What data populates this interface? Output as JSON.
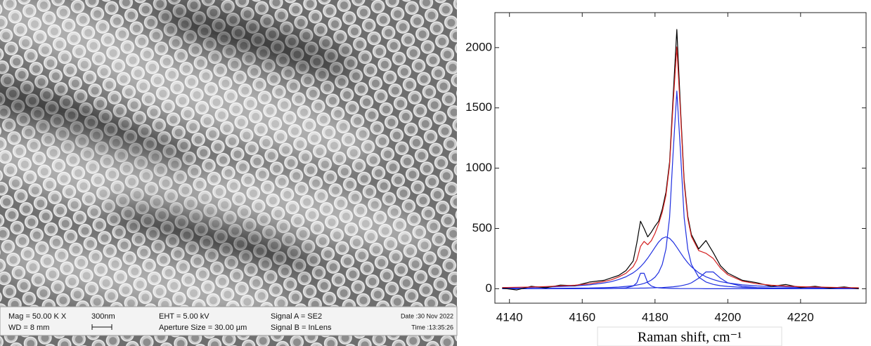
{
  "sem_panel": {
    "info": {
      "mag": "Mag = 50.00 K X",
      "wd": "WD =  8 mm",
      "scale": "300nm",
      "eht": "EHT = 5.00 kV",
      "aperture": "Aperture Size = 30.00 µm",
      "signal_a": "Signal A = SE2",
      "signal_b": "Signal B = InLens",
      "date": "Date :30 Nov 2022",
      "time": "Time :13:35:26"
    }
  },
  "chart_data": {
    "type": "line",
    "x_label": "Raman shift, cm⁻¹",
    "x": [
      4138,
      4142,
      4146,
      4150,
      4154,
      4158,
      4162,
      4166,
      4168,
      4170,
      4172,
      4174,
      4175,
      4176,
      4177,
      4178,
      4179,
      4180,
      4181,
      4182,
      4183,
      4184,
      4185,
      4186,
      4187,
      4188,
      4189,
      4190,
      4192,
      4194,
      4196,
      4198,
      4200,
      4204,
      4208,
      4212,
      4216,
      4220,
      4224,
      4228,
      4232,
      4236
    ],
    "series": [
      {
        "color": "#1f2fe0",
        "values": [
          0,
          0,
          0,
          0,
          0,
          0,
          1,
          1,
          2,
          4,
          7,
          22,
          49,
          128,
          128,
          49,
          22,
          12,
          7,
          5,
          4,
          3,
          2,
          2,
          1,
          1,
          1,
          1,
          1,
          0,
          0,
          0,
          0,
          0,
          0,
          0,
          0,
          0,
          0,
          0,
          0,
          0
        ]
      },
      {
        "color": "#1f2fe0",
        "values": [
          8,
          9,
          11,
          14,
          18,
          23,
          32,
          48,
          59,
          76,
          99,
          132,
          155,
          182,
          215,
          254,
          298,
          344,
          387,
          418,
          430,
          418,
          387,
          344,
          298,
          254,
          215,
          182,
          132,
          99,
          76,
          59,
          48,
          32,
          23,
          18,
          14,
          11,
          9,
          8,
          6,
          5
        ]
      },
      {
        "color": "#1f2fe0",
        "values": [
          2,
          2,
          2,
          3,
          4,
          5,
          6,
          9,
          11,
          14,
          19,
          25,
          30,
          36,
          44,
          56,
          72,
          96,
          135,
          202,
          328,
          590,
          1136,
          1640,
          1136,
          590,
          328,
          202,
          96,
          56,
          36,
          25,
          19,
          11,
          8,
          5,
          4,
          3,
          3,
          2,
          2,
          2
        ]
      },
      {
        "color": "#1f2fe0",
        "values": [
          1,
          1,
          1,
          1,
          1,
          1,
          2,
          2,
          2,
          3,
          3,
          4,
          4,
          5,
          5,
          6,
          7,
          8,
          9,
          10,
          12,
          14,
          16,
          20,
          24,
          30,
          38,
          49,
          87,
          139,
          139,
          87,
          49,
          20,
          10,
          6,
          4,
          3,
          2,
          2,
          1,
          1
        ]
      },
      {
        "color": "#000000",
        "values": [
          5,
          -10,
          20,
          8,
          30,
          25,
          55,
          70,
          90,
          110,
          150,
          230,
          380,
          560,
          500,
          430,
          470,
          520,
          560,
          660,
          800,
          1050,
          1600,
          2150,
          1500,
          900,
          600,
          450,
          330,
          400,
          300,
          190,
          130,
          70,
          50,
          20,
          35,
          10,
          20,
          5,
          15,
          0
        ]
      },
      {
        "color": "#d42020",
        "values": [
          10,
          12,
          14,
          18,
          23,
          29,
          41,
          60,
          74,
          97,
          128,
          183,
          238,
          351,
          392,
          365,
          399,
          460,
          538,
          635,
          774,
          1025,
          1541,
          2006,
          1459,
          875,
          582,
          434,
          316,
          294,
          251,
          171,
          116,
          63,
          41,
          29,
          22,
          17,
          14,
          12,
          9,
          8
        ]
      }
    ],
    "xlim": [
      4136,
      4238
    ],
    "ylim": [
      -120,
      2290
    ],
    "xticks": [
      4140,
      4160,
      4180,
      4200,
      4220
    ],
    "yticks": [
      0,
      500,
      1000,
      1500,
      2000
    ]
  }
}
